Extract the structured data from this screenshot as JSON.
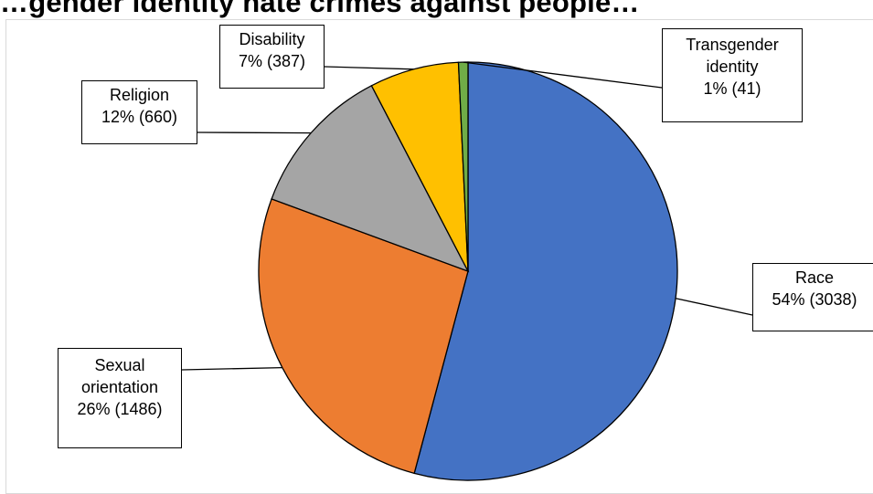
{
  "chart_data": {
    "type": "pie",
    "title": "",
    "start_angle_deg": 0,
    "direction": "clockwise",
    "slices": [
      {
        "name": "Race",
        "percent_label": "54%",
        "count": 3038,
        "color": "#4472c4"
      },
      {
        "name": "Sexual orientation",
        "percent_label": "26%",
        "count": 1486,
        "color": "#ed7d31"
      },
      {
        "name": "Religion",
        "percent_label": "12%",
        "count": 660,
        "color": "#a5a5a5"
      },
      {
        "name": "Disability",
        "percent_label": "7%",
        "count": 387,
        "color": "#ffc000"
      },
      {
        "name": "Transgender identity",
        "percent_label": "1%",
        "count": 41,
        "color": "#70ad47"
      }
    ],
    "labels": {
      "title_text": "…gender identity hate crimes against people…",
      "race_line1": "Race",
      "race_line2": "54% (3038)",
      "sexual_line1": "Sexual",
      "sexual_line2": "orientation",
      "sexual_line3": "26% (1486)",
      "religion_line1": "Religion",
      "religion_line2": "12% (660)",
      "disability_line1": "Disability",
      "disability_line2": "7% (387)",
      "trans_line1": "Transgender",
      "trans_line2": "identity",
      "trans_line3": "1% (41)"
    },
    "legend": "none",
    "grid": false
  }
}
